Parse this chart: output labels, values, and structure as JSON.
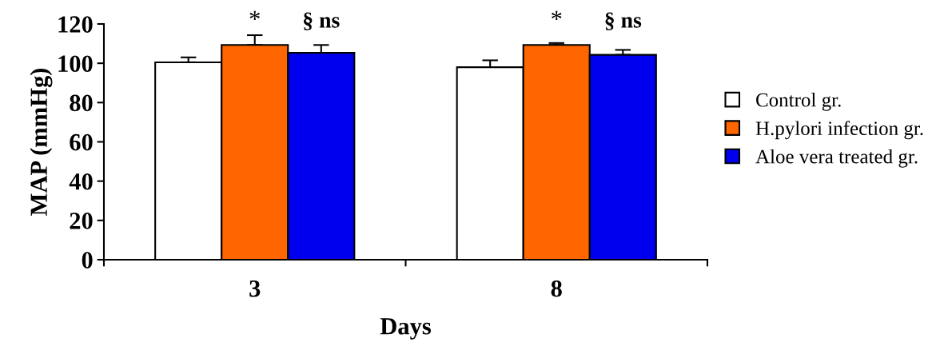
{
  "chart_data": {
    "type": "bar",
    "xlabel": "Days",
    "ylabel": "MAP (mmHg)",
    "categories": [
      "3",
      "8"
    ],
    "series": [
      {
        "name": "Control gr.",
        "color": "#ffffff",
        "values": [
          100.5,
          98
        ],
        "errors": [
          2.5,
          3.5
        ]
      },
      {
        "name": "H.pylori infection gr.",
        "color": "#ff6600",
        "values": [
          109.3,
          109.3
        ],
        "errors": [
          5,
          1
        ]
      },
      {
        "name": "Aloe vera treated gr.",
        "color": "#0000ee",
        "values": [
          105.3,
          104.3
        ],
        "errors": [
          4,
          2.5
        ]
      }
    ],
    "ylim": [
      0,
      120
    ],
    "yticks": [
      0,
      20,
      40,
      60,
      80,
      100,
      120
    ],
    "grid": false,
    "legend": "right",
    "annotations": [
      "*",
      "§ ns",
      "*",
      "§ ns"
    ]
  }
}
